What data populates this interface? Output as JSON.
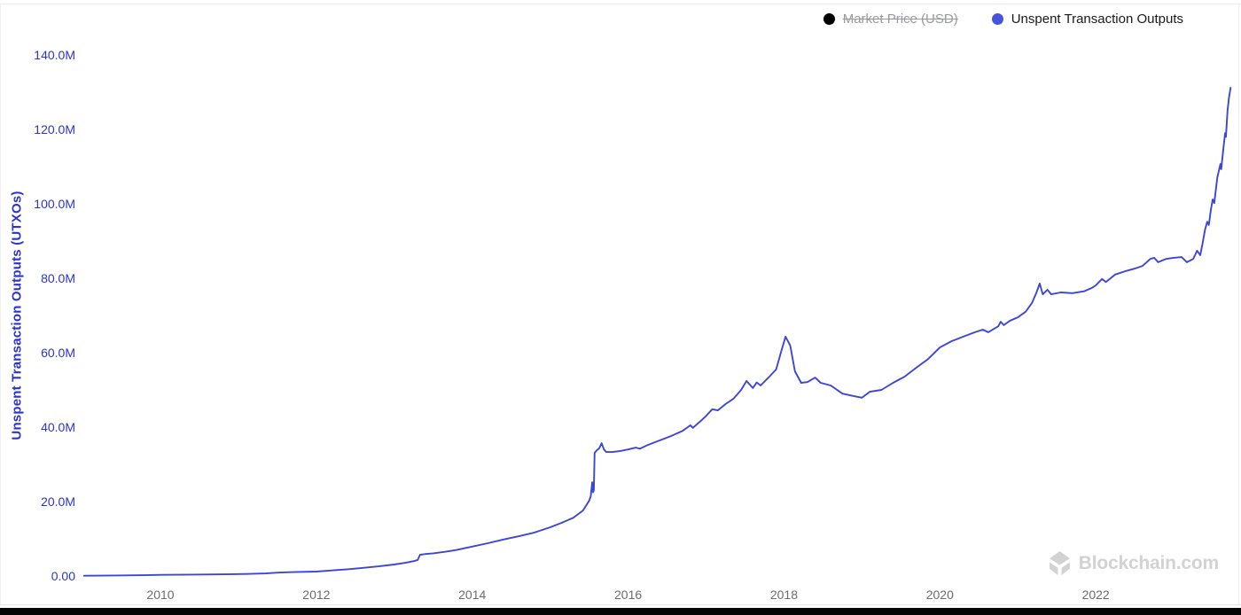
{
  "legend": {
    "items": [
      {
        "label": "Market Price (USD)",
        "color": "#000000",
        "disabled": true
      },
      {
        "label": "Unspent Transaction Outputs",
        "color": "#4853db",
        "disabled": false
      }
    ]
  },
  "watermark": {
    "text": "Blockchain.com",
    "icon": "blockchain-logo-icon"
  },
  "chart_data": {
    "type": "line",
    "title": "",
    "xlabel": "",
    "ylabel": "Unspent Transaction Outputs (UTXOs)",
    "y_unit": "M",
    "grid": false,
    "legend_position": "top-right",
    "xlim": [
      2008.95,
      2023.87
    ],
    "ylim": [
      0,
      140
    ],
    "x_ticks": {
      "values": [
        2010,
        2012,
        2014,
        2016,
        2018,
        2020,
        2022
      ],
      "labels": [
        "2010",
        "2012",
        "2014",
        "2016",
        "2018",
        "2020",
        "2022"
      ]
    },
    "y_ticks": {
      "values": [
        0,
        20,
        40,
        60,
        80,
        100,
        120,
        140
      ],
      "labels": [
        "0.00",
        "20.0M",
        "40.0M",
        "60.0M",
        "80.0M",
        "100.0M",
        "120.0M",
        "140.0M"
      ]
    },
    "series": [
      {
        "name": "Unspent Transaction Outputs",
        "color": "#3b46d8",
        "points": [
          [
            2009.02,
            0.08
          ],
          [
            2009.4,
            0.15
          ],
          [
            2009.8,
            0.22
          ],
          [
            2010.0,
            0.3
          ],
          [
            2010.4,
            0.38
          ],
          [
            2010.8,
            0.45
          ],
          [
            2011.1,
            0.55
          ],
          [
            2011.35,
            0.7
          ],
          [
            2011.5,
            0.9
          ],
          [
            2011.7,
            1.05
          ],
          [
            2012.0,
            1.2
          ],
          [
            2012.2,
            1.5
          ],
          [
            2012.4,
            1.8
          ],
          [
            2012.6,
            2.2
          ],
          [
            2012.8,
            2.6
          ],
          [
            2013.0,
            3.1
          ],
          [
            2013.15,
            3.6
          ],
          [
            2013.25,
            4.0
          ],
          [
            2013.3,
            4.3
          ],
          [
            2013.33,
            5.7
          ],
          [
            2013.4,
            5.9
          ],
          [
            2013.5,
            6.1
          ],
          [
            2013.65,
            6.5
          ],
          [
            2013.8,
            7.0
          ],
          [
            2014.0,
            7.9
          ],
          [
            2014.2,
            8.8
          ],
          [
            2014.4,
            9.8
          ],
          [
            2014.6,
            10.7
          ],
          [
            2014.8,
            11.7
          ],
          [
            2015.0,
            13.1
          ],
          [
            2015.15,
            14.3
          ],
          [
            2015.3,
            15.7
          ],
          [
            2015.42,
            17.6
          ],
          [
            2015.5,
            20.2
          ],
          [
            2015.52,
            21.4
          ],
          [
            2015.54,
            25.2
          ],
          [
            2015.55,
            22.5
          ],
          [
            2015.56,
            23.0
          ],
          [
            2015.57,
            33.1
          ],
          [
            2015.6,
            33.8
          ],
          [
            2015.63,
            34.3
          ],
          [
            2015.66,
            35.7
          ],
          [
            2015.69,
            34.0
          ],
          [
            2015.72,
            33.3
          ],
          [
            2015.8,
            33.3
          ],
          [
            2015.9,
            33.6
          ],
          [
            2016.0,
            34.0
          ],
          [
            2016.1,
            34.5
          ],
          [
            2016.15,
            34.2
          ],
          [
            2016.25,
            35.2
          ],
          [
            2016.4,
            36.4
          ],
          [
            2016.55,
            37.6
          ],
          [
            2016.7,
            39.0
          ],
          [
            2016.8,
            40.5
          ],
          [
            2016.83,
            39.8
          ],
          [
            2016.95,
            42.0
          ],
          [
            2017.0,
            43.0
          ],
          [
            2017.08,
            44.8
          ],
          [
            2017.15,
            44.5
          ],
          [
            2017.25,
            46.2
          ],
          [
            2017.35,
            47.6
          ],
          [
            2017.45,
            50.0
          ],
          [
            2017.52,
            52.4
          ],
          [
            2017.6,
            50.5
          ],
          [
            2017.65,
            52.0
          ],
          [
            2017.7,
            51.2
          ],
          [
            2017.8,
            53.3
          ],
          [
            2017.9,
            55.5
          ],
          [
            2017.96,
            60.0
          ],
          [
            2018.02,
            64.3
          ],
          [
            2018.08,
            61.9
          ],
          [
            2018.14,
            55.0
          ],
          [
            2018.22,
            51.9
          ],
          [
            2018.3,
            52.1
          ],
          [
            2018.4,
            53.3
          ],
          [
            2018.47,
            51.9
          ],
          [
            2018.6,
            51.2
          ],
          [
            2018.75,
            49.0
          ],
          [
            2018.9,
            48.3
          ],
          [
            2019.0,
            47.9
          ],
          [
            2019.1,
            49.5
          ],
          [
            2019.25,
            50.0
          ],
          [
            2019.4,
            51.9
          ],
          [
            2019.55,
            53.6
          ],
          [
            2019.7,
            56.0
          ],
          [
            2019.85,
            58.3
          ],
          [
            2020.0,
            61.4
          ],
          [
            2020.15,
            63.1
          ],
          [
            2020.3,
            64.3
          ],
          [
            2020.45,
            65.5
          ],
          [
            2020.55,
            66.2
          ],
          [
            2020.62,
            65.5
          ],
          [
            2020.75,
            67.1
          ],
          [
            2020.78,
            68.3
          ],
          [
            2020.82,
            67.4
          ],
          [
            2020.9,
            68.6
          ],
          [
            2021.0,
            69.5
          ],
          [
            2021.1,
            71.0
          ],
          [
            2021.18,
            73.3
          ],
          [
            2021.24,
            76.2
          ],
          [
            2021.28,
            78.6
          ],
          [
            2021.32,
            75.7
          ],
          [
            2021.38,
            76.9
          ],
          [
            2021.43,
            75.7
          ],
          [
            2021.55,
            76.2
          ],
          [
            2021.7,
            76.0
          ],
          [
            2021.85,
            76.5
          ],
          [
            2021.95,
            77.4
          ],
          [
            2022.0,
            78.1
          ],
          [
            2022.08,
            79.8
          ],
          [
            2022.13,
            79.0
          ],
          [
            2022.25,
            81.0
          ],
          [
            2022.38,
            81.9
          ],
          [
            2022.5,
            82.6
          ],
          [
            2022.6,
            83.3
          ],
          [
            2022.7,
            85.2
          ],
          [
            2022.75,
            85.5
          ],
          [
            2022.8,
            84.3
          ],
          [
            2022.9,
            85.2
          ],
          [
            2023.0,
            85.5
          ],
          [
            2023.1,
            85.7
          ],
          [
            2023.17,
            84.3
          ],
          [
            2023.25,
            85.2
          ],
          [
            2023.3,
            87.4
          ],
          [
            2023.34,
            86.2
          ],
          [
            2023.37,
            89.3
          ],
          [
            2023.4,
            92.9
          ],
          [
            2023.43,
            95.2
          ],
          [
            2023.45,
            94.3
          ],
          [
            2023.48,
            98.8
          ],
          [
            2023.5,
            101.2
          ],
          [
            2023.52,
            100.2
          ],
          [
            2023.56,
            107.1
          ],
          [
            2023.6,
            110.7
          ],
          [
            2023.61,
            109.3
          ],
          [
            2023.64,
            115.5
          ],
          [
            2023.66,
            119.0
          ],
          [
            2023.67,
            118.0
          ],
          [
            2023.69,
            125.0
          ],
          [
            2023.71,
            128.6
          ],
          [
            2023.73,
            131.2
          ]
        ]
      }
    ]
  }
}
